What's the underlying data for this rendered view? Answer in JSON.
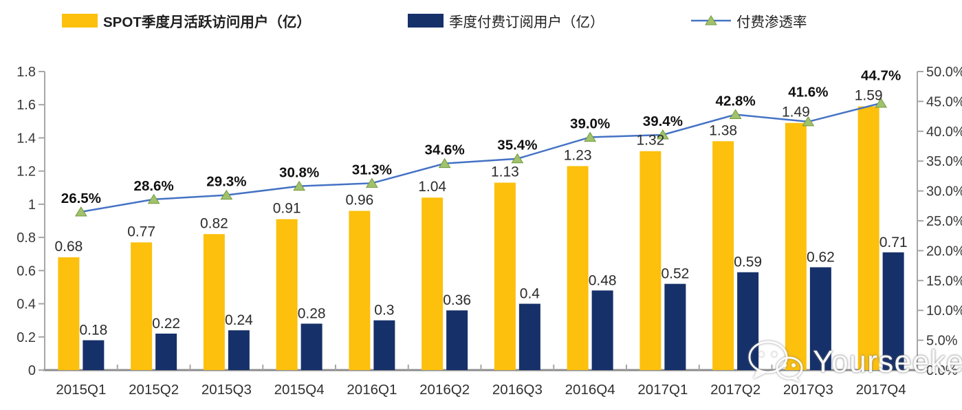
{
  "legend": {
    "items": [
      {
        "label": "SPOT季度月活跃访问用户（亿）",
        "color": "#FCC00D",
        "type": "bar"
      },
      {
        "label": "季度付费订阅用户（亿）",
        "color": "#16306A",
        "type": "bar"
      },
      {
        "label": "付费渗透率",
        "color": "#4472C4",
        "marker_color": "#A2C16C",
        "type": "line"
      }
    ]
  },
  "watermark": {
    "text": "Yourseeker",
    "icon": "wechat-icon"
  },
  "chart_data": {
    "type": "combo-bar-line",
    "categories": [
      "2015Q1",
      "2015Q2",
      "2015Q3",
      "2015Q4",
      "2016Q1",
      "2016Q2",
      "2016Q3",
      "2016Q4",
      "2017Q1",
      "2017Q2",
      "2017Q3",
      "2017Q4"
    ],
    "series": [
      {
        "name": "SPOT季度月活跃访问用户（亿）",
        "type": "bar",
        "axis": "left",
        "color": "#FCC00D",
        "values": [
          0.68,
          0.77,
          0.82,
          0.91,
          0.96,
          1.04,
          1.13,
          1.23,
          1.32,
          1.38,
          1.49,
          1.59
        ],
        "labels": [
          "0.68",
          "0.77",
          "0.82",
          "0.91",
          "0.96",
          "1.04",
          "1.13",
          "1.23",
          "1.32",
          "1.38",
          "1.49",
          "1.59"
        ]
      },
      {
        "name": "季度付费订阅用户（亿）",
        "type": "bar",
        "axis": "left",
        "color": "#16306A",
        "values": [
          0.18,
          0.22,
          0.24,
          0.28,
          0.3,
          0.36,
          0.4,
          0.48,
          0.52,
          0.59,
          0.62,
          0.71
        ],
        "labels": [
          "0.18",
          "0.22",
          "0.24",
          "0.28",
          "0.3",
          "0.36",
          "0.4",
          "0.48",
          "0.52",
          "0.59",
          "0.62",
          "0.71"
        ]
      },
      {
        "name": "付费渗透率",
        "type": "line",
        "axis": "right",
        "color": "#4472C4",
        "marker_color": "#A2C16C",
        "marker_stroke": "#6F9B3D",
        "values": [
          26.5,
          28.6,
          29.3,
          30.8,
          31.3,
          34.6,
          35.4,
          39.0,
          39.4,
          42.8,
          41.6,
          44.7
        ],
        "labels": [
          "26.5%",
          "28.6%",
          "29.3%",
          "30.8%",
          "31.3%",
          "34.6%",
          "35.4%",
          "39.0%",
          "39.4%",
          "42.8%",
          "41.6%",
          "44.7%"
        ]
      }
    ],
    "left_axis": {
      "min": 0,
      "max": 1.8,
      "ticks": [
        "0",
        "0.2",
        "0.4",
        "0.6",
        "0.8",
        "1",
        "1.2",
        "1.4",
        "1.6",
        "1.8"
      ]
    },
    "right_axis": {
      "min": 0,
      "max": 50,
      "ticks": [
        "0.0%",
        "5.0%",
        "10.0%",
        "15.0%",
        "20.0%",
        "25.0%",
        "30.0%",
        "35.0%",
        "40.0%",
        "45.0%",
        "50.0%"
      ]
    },
    "grid": false,
    "legend_position": "top"
  }
}
